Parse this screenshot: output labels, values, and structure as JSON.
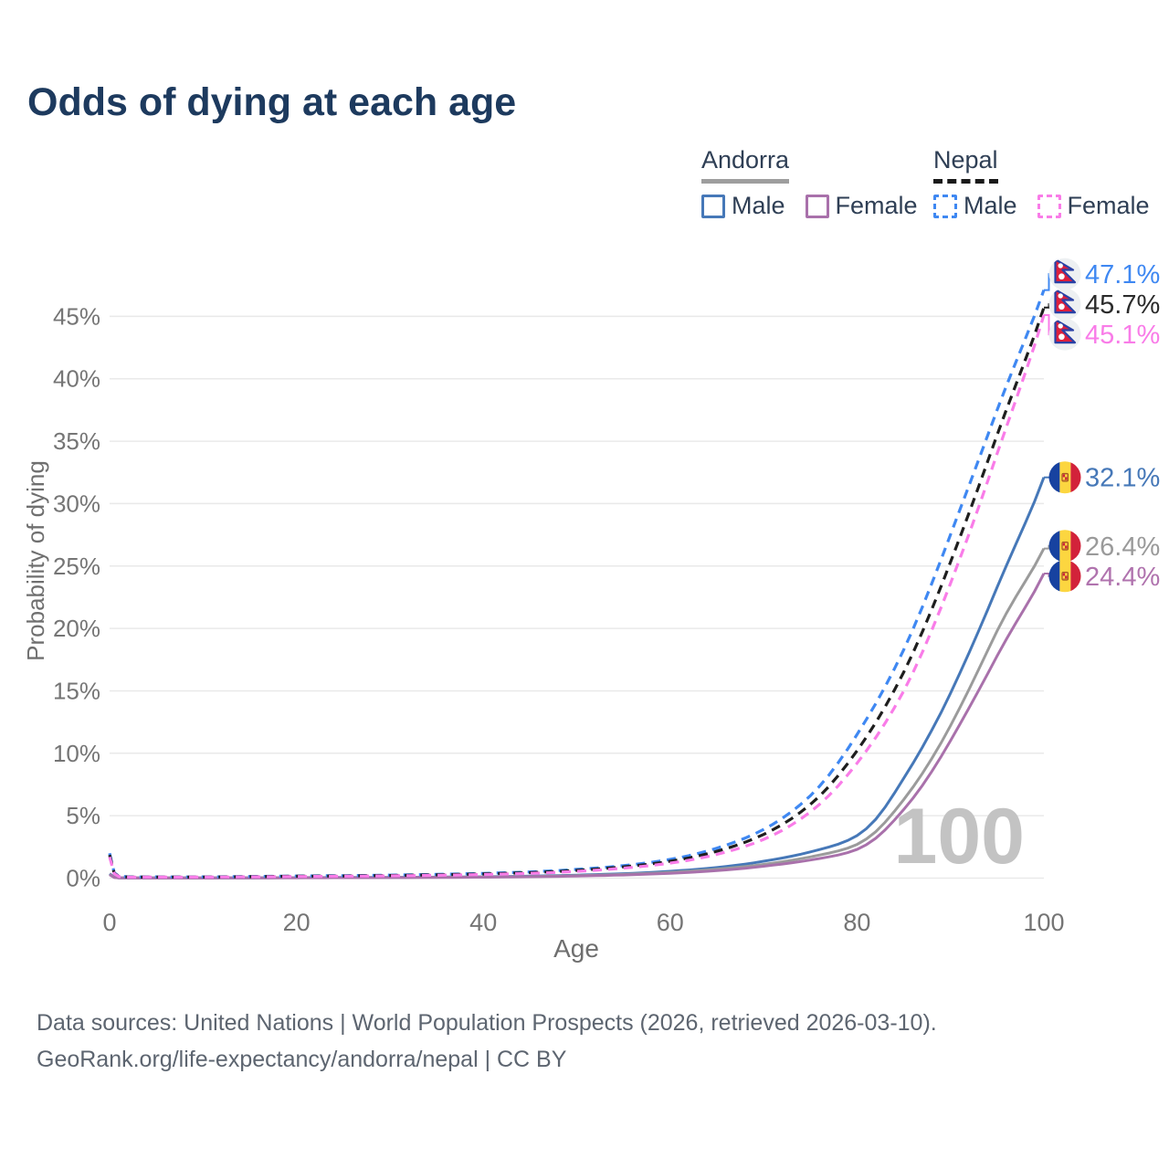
{
  "title": "Odds of dying at each age",
  "legend": {
    "groups": [
      {
        "country": "Andorra",
        "line_style": "solid",
        "underline_color": "#9e9e9e",
        "items": [
          {
            "label": "Male",
            "color": "#4678b8",
            "dashed": false
          },
          {
            "label": "Female",
            "color": "#a971ab",
            "dashed": false
          }
        ]
      },
      {
        "country": "Nepal",
        "line_style": "dashed",
        "underline_color": "#1a1a1a",
        "items": [
          {
            "label": "Male",
            "color": "#3f88f2",
            "dashed": true
          },
          {
            "label": "Female",
            "color": "#f97ce8",
            "dashed": true
          }
        ]
      }
    ]
  },
  "chart_data": {
    "type": "line",
    "title": "Odds of dying at each age",
    "xlabel": "Age",
    "ylabel": "Probability of dying",
    "xlim": [
      0,
      100
    ],
    "ylim_percent": [
      0,
      48
    ],
    "x_ticks": [
      0,
      20,
      40,
      60,
      80,
      100
    ],
    "y_ticks_percent": [
      0,
      5,
      10,
      15,
      20,
      25,
      30,
      35,
      40,
      45
    ],
    "y_tick_suffix": "%",
    "grid": "horizontal",
    "legend_position": "top-right",
    "watermark": "100",
    "sample_ages": [
      0,
      1,
      5,
      10,
      15,
      20,
      25,
      30,
      35,
      40,
      45,
      50,
      55,
      60,
      65,
      70,
      75,
      80,
      85,
      90,
      95,
      100
    ],
    "series": [
      {
        "id": "andorra-male",
        "country": "Andorra",
        "group": "Male",
        "color": "#4678b8",
        "dashed": false,
        "flag": "andorra",
        "end_value_percent": 32.1,
        "end_label": "32.1%",
        "label_color": "#4678b8",
        "values_percent": [
          0.35,
          0.025,
          0.015,
          0.015,
          0.025,
          0.04,
          0.05,
          0.06,
          0.08,
          0.11,
          0.16,
          0.24,
          0.36,
          0.55,
          0.85,
          1.35,
          2.1,
          3.4,
          8.0,
          14.8,
          23.3,
          32.1
        ]
      },
      {
        "id": "andorra-combined",
        "country": "Andorra",
        "group": "Combined",
        "color": "#9b9b9b",
        "dashed": false,
        "flag": "andorra",
        "end_value_percent": 26.4,
        "end_label": "26.4%",
        "label_color": "#9a9a9a",
        "values_percent": [
          0.3,
          0.02,
          0.012,
          0.012,
          0.02,
          0.032,
          0.04,
          0.05,
          0.066,
          0.09,
          0.13,
          0.2,
          0.3,
          0.46,
          0.71,
          1.1,
          1.7,
          2.7,
          6.3,
          12.2,
          19.8,
          26.4
        ]
      },
      {
        "id": "andorra-female",
        "country": "Andorra",
        "group": "Female",
        "color": "#a971ab",
        "dashed": false,
        "flag": "andorra",
        "end_value_percent": 24.4,
        "end_label": "24.4%",
        "label_color": "#b073ae",
        "values_percent": [
          0.28,
          0.018,
          0.01,
          0.01,
          0.018,
          0.028,
          0.035,
          0.042,
          0.055,
          0.075,
          0.108,
          0.17,
          0.25,
          0.39,
          0.6,
          0.95,
          1.45,
          2.3,
          5.5,
          11.0,
          17.8,
          24.4
        ]
      },
      {
        "id": "nepal-male",
        "country": "Nepal",
        "group": "Male",
        "color": "#3f88f2",
        "dashed": true,
        "flag": "nepal",
        "end_value_percent": 47.1,
        "end_label": "47.1%",
        "label_color": "#3f88f2",
        "values_percent": [
          2.0,
          0.15,
          0.1,
          0.1,
          0.13,
          0.17,
          0.2,
          0.24,
          0.3,
          0.38,
          0.5,
          0.7,
          1.0,
          1.5,
          2.4,
          3.9,
          6.6,
          11.5,
          18.3,
          27.5,
          37.5,
          47.1
        ]
      },
      {
        "id": "nepal-combined",
        "country": "Nepal",
        "group": "Combined",
        "color": "#1e1e1e",
        "dashed": true,
        "flag": "nepal",
        "end_value_percent": 45.7,
        "end_label": "45.7%",
        "label_color": "#2b2b2b",
        "values_percent": [
          1.85,
          0.13,
          0.09,
          0.09,
          0.115,
          0.15,
          0.175,
          0.21,
          0.265,
          0.335,
          0.44,
          0.62,
          0.9,
          1.35,
          2.15,
          3.5,
          5.9,
          10.2,
          16.5,
          25.3,
          35.5,
          45.7
        ]
      },
      {
        "id": "nepal-female",
        "country": "Nepal",
        "group": "Female",
        "color": "#f97ce8",
        "dashed": true,
        "flag": "nepal",
        "end_value_percent": 45.1,
        "end_label": "45.1%",
        "label_color": "#f97ce8",
        "values_percent": [
          1.7,
          0.12,
          0.08,
          0.08,
          0.1,
          0.13,
          0.15,
          0.18,
          0.23,
          0.29,
          0.38,
          0.54,
          0.8,
          1.2,
          1.9,
          3.1,
          5.3,
          9.2,
          15.0,
          23.6,
          34.0,
          45.1
        ]
      }
    ]
  },
  "footer": {
    "line1": "Data sources: United Nations | World Population Prospects (2026, retrieved 2026-03-10).",
    "line2": "GeoRank.org/life-expectancy/andorra/nepal | CC BY"
  }
}
